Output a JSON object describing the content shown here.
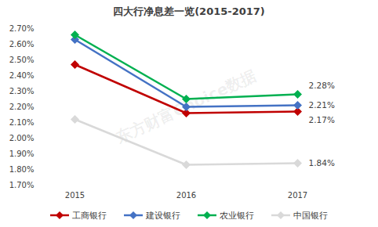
{
  "chart_data": {
    "type": "line",
    "title": "四大行净息差一览(2015-2017)",
    "categories": [
      "2015",
      "2016",
      "2017"
    ],
    "series": [
      {
        "name": "工商银行",
        "color": "#c00000",
        "marker": "diamond",
        "values": [
          2.47,
          2.16,
          2.17
        ],
        "value_labels": [
          null,
          null,
          "2.17%"
        ]
      },
      {
        "name": "建设银行",
        "color": "#4472c4",
        "marker": "diamond",
        "values": [
          2.63,
          2.2,
          2.21
        ],
        "value_labels": [
          null,
          null,
          "2.21%"
        ]
      },
      {
        "name": "农业银行",
        "color": "#00b050",
        "marker": "diamond",
        "values": [
          2.66,
          2.25,
          2.28
        ],
        "value_labels": [
          null,
          null,
          "2.28%"
        ]
      },
      {
        "name": "中国银行",
        "color": "#d9d9d9",
        "marker": "diamond",
        "values": [
          2.12,
          1.83,
          1.84
        ],
        "value_labels": [
          null,
          null,
          "1.84%"
        ]
      }
    ],
    "ylim": [
      1.7,
      2.7
    ],
    "yticks": [
      {
        "value": 1.7,
        "label": "1.70%"
      },
      {
        "value": 1.8,
        "label": "1.80%"
      },
      {
        "value": 1.9,
        "label": "1.90%"
      },
      {
        "value": 2.0,
        "label": "2.00%"
      },
      {
        "value": 2.1,
        "label": "2.10%"
      },
      {
        "value": 2.2,
        "label": "2.20%"
      },
      {
        "value": 2.3,
        "label": "2.30%"
      },
      {
        "value": 2.4,
        "label": "2.40%"
      },
      {
        "value": 2.5,
        "label": "2.50%"
      },
      {
        "value": 2.6,
        "label": "2.60%"
      },
      {
        "value": 2.7,
        "label": "2.70%"
      }
    ],
    "grid": false,
    "legend": "bottom",
    "annotations": [
      {
        "text": "东方财富Choice数据"
      }
    ]
  }
}
